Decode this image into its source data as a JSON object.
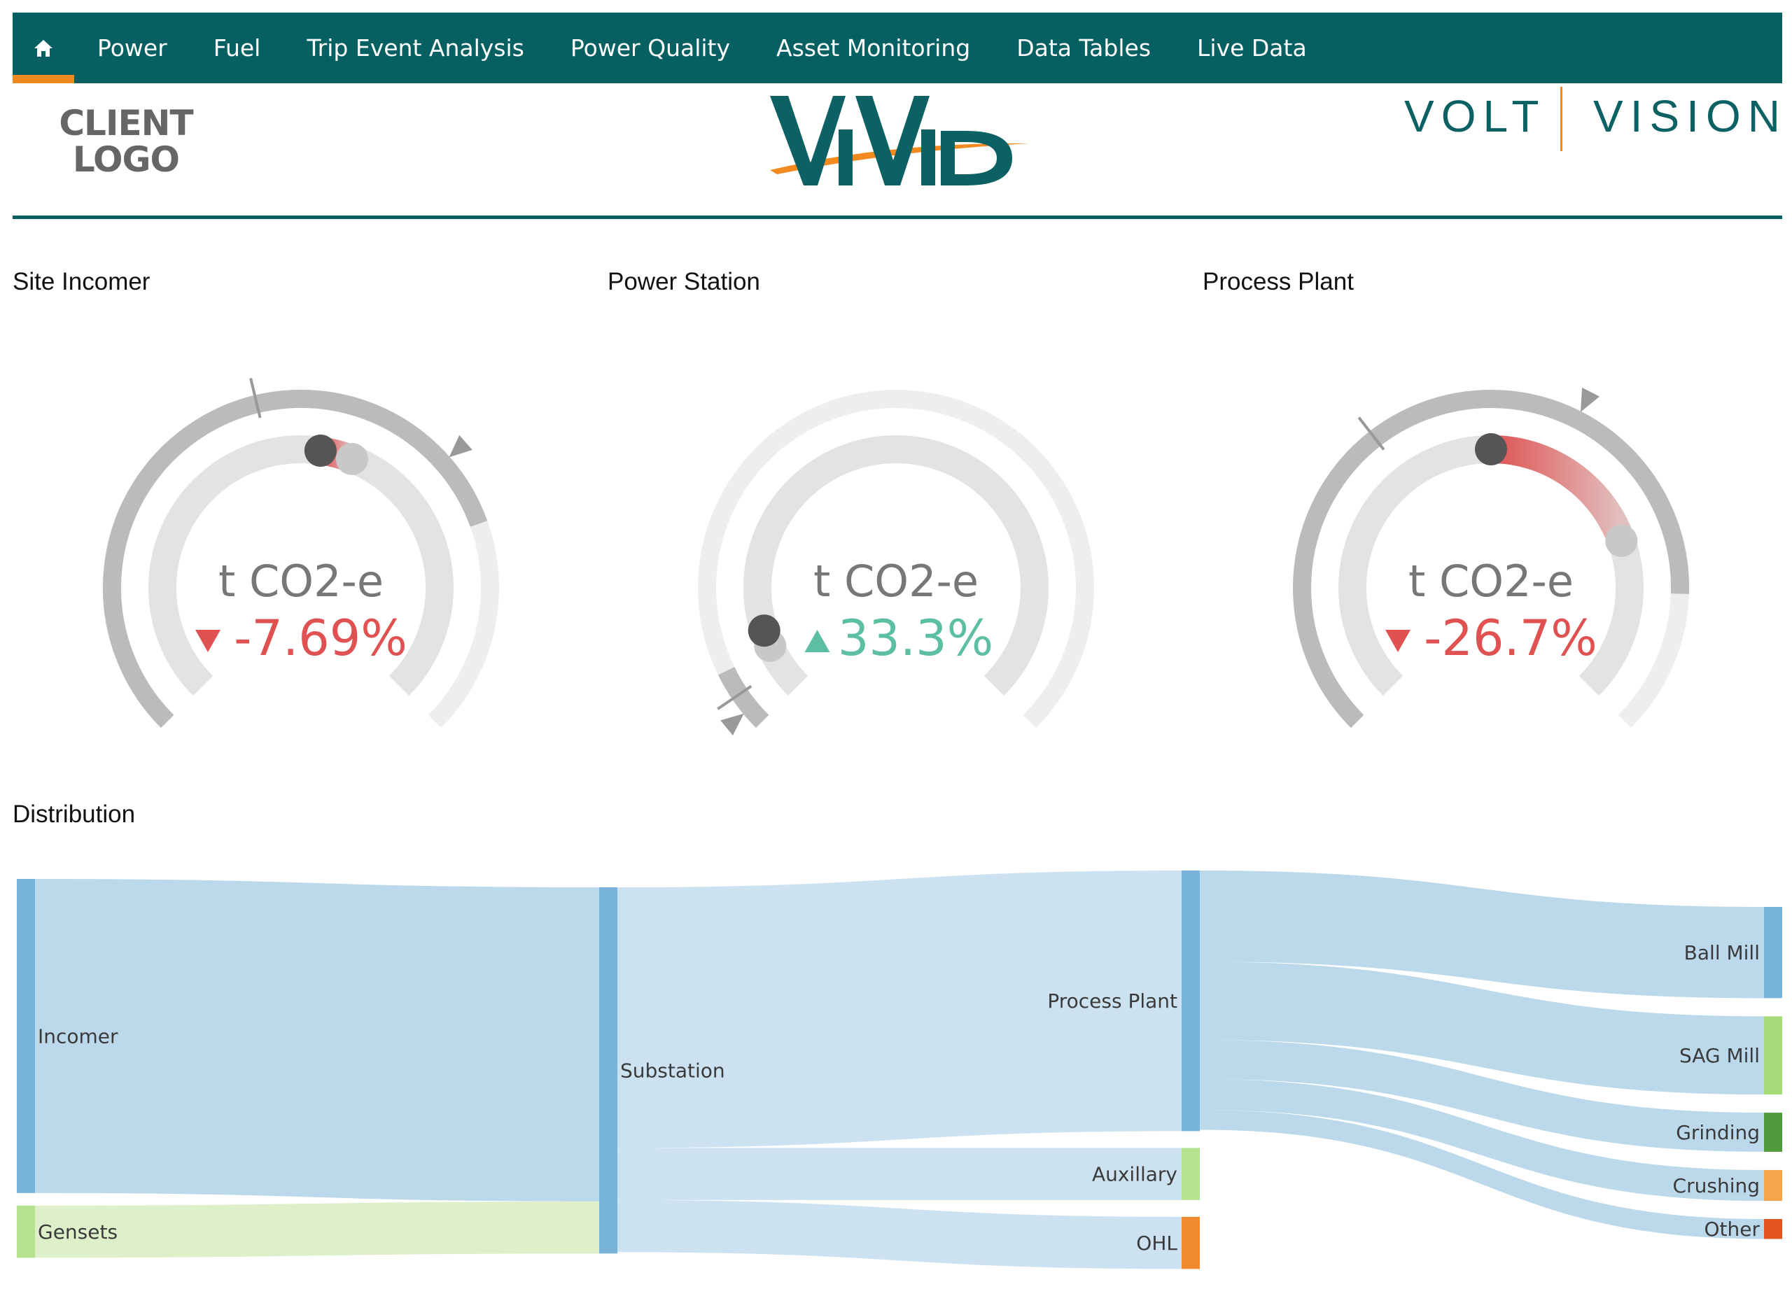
{
  "nav": {
    "home_icon": "home-icon",
    "items": [
      {
        "label": "Power"
      },
      {
        "label": "Fuel"
      },
      {
        "label": "Trip Event Analysis"
      },
      {
        "label": "Power Quality"
      },
      {
        "label": "Asset Monitoring"
      },
      {
        "label": "Data Tables"
      },
      {
        "label": "Live Data"
      }
    ]
  },
  "header": {
    "client_logo_line1": "CLIENT",
    "client_logo_line2": "LOGO",
    "vivid_logo_text": "VIVID",
    "volt_logo_left": "VOLT",
    "volt_logo_right": "VISION"
  },
  "colors": {
    "nav_bg": "#066062",
    "accent_orange": "#f28a1f",
    "negative_red": "#e05252",
    "positive_teal": "#5cbfa3",
    "sankey_blue": "#78b3db",
    "sankey_light_green": "#b5e28e",
    "sankey_dark_green": "#4f9a3b",
    "sankey_orange": "#f7a54c",
    "sankey_orange_dark": "#f28a30",
    "sankey_red_orange": "#e35420"
  },
  "gauges": [
    {
      "title": "Site Incomer",
      "unit": "t CO2-e",
      "change": "-7.69%",
      "direction": "down",
      "scale_min_label": "10",
      "scale_max_label": "100",
      "current_fraction": 0.53,
      "previous_fraction": 0.58,
      "outer_fill_fraction": 0.76,
      "needle_fraction": 0.45,
      "target_fraction": 0.68
    },
    {
      "title": "Power Station",
      "unit": "t CO2-e",
      "change": "33.3%",
      "direction": "up",
      "scale_min_label": "10",
      "scale_max_label": "100",
      "current_fraction": 0.1,
      "previous_fraction": 0.075,
      "outer_fill_fraction": 0.07,
      "needle_fraction": 0.04,
      "target_fraction": 0.02
    },
    {
      "title": "Process Plant",
      "unit": "t CO2-e",
      "change": "-26.7%",
      "direction": "down",
      "scale_min_label": "10",
      "scale_max_label": "100",
      "current_fraction": 0.5,
      "previous_fraction": 0.76,
      "outer_fill_fraction": 0.84,
      "needle_fraction": 0.36,
      "target_fraction": 0.6
    }
  ],
  "distribution": {
    "title": "Distribution",
    "nodes": [
      {
        "id": "incomer",
        "label": "Incomer",
        "color": "#78b3db"
      },
      {
        "id": "gensets",
        "label": "Gensets",
        "color": "#b5e28e"
      },
      {
        "id": "substation",
        "label": "Substation",
        "color": "#78b3db"
      },
      {
        "id": "process",
        "label": "Process Plant",
        "color": "#78b3db"
      },
      {
        "id": "aux",
        "label": "Auxillary",
        "color": "#b5e28e"
      },
      {
        "id": "ohl",
        "label": "OHL",
        "color": "#f28a30"
      },
      {
        "id": "ball",
        "label": "Ball Mill",
        "color": "#78b3db"
      },
      {
        "id": "sag",
        "label": "SAG Mill",
        "color": "#a6dd7a"
      },
      {
        "id": "grinding",
        "label": "Grinding",
        "color": "#4f9a3b"
      },
      {
        "id": "crushing",
        "label": "Crushing",
        "color": "#f7a54c"
      },
      {
        "id": "other",
        "label": "Other",
        "color": "#e35420"
      }
    ],
    "links": [
      {
        "source": "incomer",
        "target": "substation",
        "value": 458
      },
      {
        "source": "gensets",
        "target": "substation",
        "value": 76
      },
      {
        "source": "substation",
        "target": "process",
        "value": 380
      },
      {
        "source": "substation",
        "target": "aux",
        "value": 76
      },
      {
        "source": "substation",
        "target": "ohl",
        "value": 76
      },
      {
        "source": "process",
        "target": "ball",
        "value": 133
      },
      {
        "source": "process",
        "target": "sag",
        "value": 114
      },
      {
        "source": "process",
        "target": "grinding",
        "value": 57
      },
      {
        "source": "process",
        "target": "crushing",
        "value": 45
      },
      {
        "source": "process",
        "target": "other",
        "value": 29
      }
    ]
  }
}
